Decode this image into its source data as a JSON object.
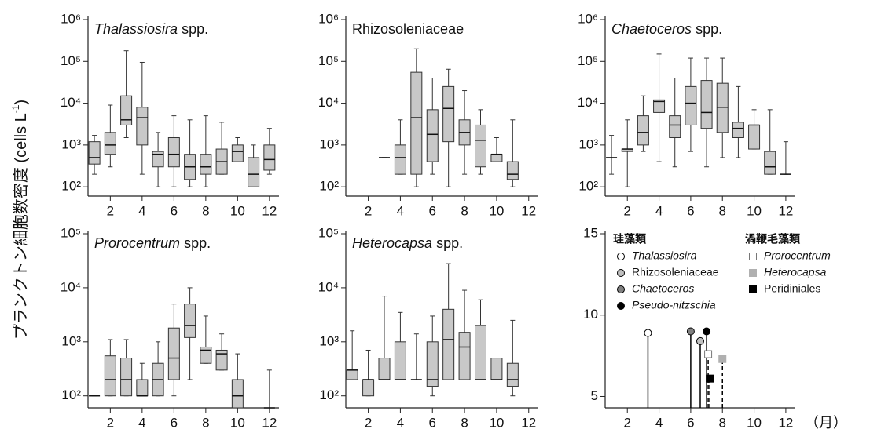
{
  "y_label": {
    "text": "プランクトン細胞数密度 (cells L",
    "superscript": "-1",
    "close": ")"
  },
  "chart_data": [
    {
      "type": "box",
      "title_italic": "Thalassiosira",
      "title_rest": "spp.",
      "log_scale": true,
      "color": "#c8c8c8",
      "xlim": [
        0.6,
        12.6
      ],
      "xticks": [
        2,
        4,
        6,
        8,
        10,
        12
      ],
      "ylim": [
        60,
        1000000
      ],
      "yticks": [
        {
          "value": 100,
          "label": "10²"
        },
        {
          "value": 1000,
          "label": "10³"
        },
        {
          "value": 10000,
          "label": "10⁴"
        },
        {
          "value": 100000,
          "label": "10⁵"
        },
        {
          "value": 1000000,
          "label": "10⁶"
        }
      ],
      "x": [
        1,
        2,
        3,
        4,
        5,
        6,
        7,
        8,
        9,
        10,
        11,
        12
      ],
      "boxes": {
        "min": [
          200,
          300,
          1500,
          200,
          100,
          100,
          100,
          100,
          200,
          400,
          100,
          200
        ],
        "q1": [
          350,
          600,
          3000,
          1000,
          300,
          300,
          150,
          200,
          200,
          400,
          100,
          250
        ],
        "median": [
          500,
          1000,
          4000,
          4500,
          600,
          600,
          300,
          300,
          400,
          700,
          200,
          450
        ],
        "q3": [
          1200,
          2000,
          15000,
          8000,
          700,
          1500,
          600,
          600,
          800,
          1000,
          500,
          1000
        ],
        "max": [
          1700,
          9000,
          180000,
          95000,
          2000,
          5000,
          4000,
          5000,
          3500,
          1500,
          1000,
          2500
        ]
      }
    },
    {
      "type": "box",
      "title_italic": "",
      "title_rest": "Rhizosoleniaceae",
      "log_scale": true,
      "color": "#c8c8c8",
      "xlim": [
        0.6,
        12.6
      ],
      "xticks": [
        2,
        4,
        6,
        8,
        10,
        12
      ],
      "ylim": [
        60,
        1000000
      ],
      "yticks": [
        {
          "value": 100,
          "label": "10²"
        },
        {
          "value": 1000,
          "label": "10³"
        },
        {
          "value": 10000,
          "label": "10⁴"
        },
        {
          "value": 100000,
          "label": "10⁵"
        },
        {
          "value": 1000000,
          "label": "10⁶"
        }
      ],
      "x": [
        1,
        2,
        3,
        4,
        5,
        6,
        7,
        8,
        9,
        10,
        11,
        12
      ],
      "boxes": {
        "min": [
          null,
          null,
          500,
          200,
          100,
          200,
          100,
          200,
          200,
          400,
          100,
          null
        ],
        "q1": [
          null,
          null,
          500,
          200,
          200,
          400,
          1200,
          1000,
          300,
          400,
          150,
          null
        ],
        "median": [
          null,
          null,
          500,
          500,
          4500,
          1800,
          7500,
          2000,
          1300,
          600,
          200,
          null
        ],
        "q3": [
          null,
          null,
          500,
          1000,
          55000,
          7000,
          25000,
          4000,
          3000,
          600,
          400,
          null
        ],
        "max": [
          null,
          null,
          500,
          4000,
          200000,
          40000,
          65000,
          20000,
          7000,
          1500,
          4000,
          null
        ]
      }
    },
    {
      "type": "box",
      "title_italic": "Chaetoceros",
      "title_rest": "spp.",
      "log_scale": true,
      "color": "#c8c8c8",
      "xlim": [
        0.6,
        12.6
      ],
      "xticks": [
        2,
        4,
        6,
        8,
        10,
        12
      ],
      "ylim": [
        60,
        1000000
      ],
      "yticks": [
        {
          "value": 100,
          "label": "10²"
        },
        {
          "value": 1000,
          "label": "10³"
        },
        {
          "value": 10000,
          "label": "10⁴"
        },
        {
          "value": 100000,
          "label": "10⁵"
        },
        {
          "value": 1000000,
          "label": "10⁶"
        }
      ],
      "x": [
        1,
        2,
        3,
        4,
        5,
        6,
        7,
        8,
        9,
        10,
        11,
        12
      ],
      "boxes": {
        "min": [
          200,
          100,
          700,
          400,
          300,
          700,
          300,
          500,
          500,
          800,
          200,
          200
        ],
        "q1": [
          500,
          700,
          1000,
          6000,
          1500,
          3000,
          2500,
          2000,
          1500,
          800,
          200,
          200
        ],
        "median": [
          500,
          800,
          2000,
          11000,
          3000,
          10000,
          6000,
          8000,
          2500,
          3000,
          300,
          200
        ],
        "q3": [
          500,
          800,
          5000,
          12000,
          5000,
          25000,
          35000,
          30000,
          3500,
          3000,
          700,
          200
        ],
        "max": [
          1700,
          4000,
          15000,
          150000,
          40000,
          120000,
          120000,
          120000,
          25000,
          7000,
          7000,
          1200
        ]
      }
    },
    {
      "type": "box",
      "title_italic": "Prorocentrum",
      "title_rest": "spp.",
      "log_scale": true,
      "color": "#c8c8c8",
      "xlim": [
        0.6,
        12.6
      ],
      "xticks": [
        2,
        4,
        6,
        8,
        10,
        12
      ],
      "ylim": [
        60,
        100000
      ],
      "yticks": [
        {
          "value": 100,
          "label": "10²"
        },
        {
          "value": 1000,
          "label": "10³"
        },
        {
          "value": 10000,
          "label": "10⁴"
        },
        {
          "value": 100000,
          "label": "10⁵"
        }
      ],
      "x": [
        1,
        2,
        3,
        4,
        5,
        6,
        7,
        8,
        9,
        10,
        11,
        12
      ],
      "boxes": {
        "min": [
          100,
          100,
          100,
          100,
          100,
          100,
          200,
          400,
          300,
          60,
          null,
          60
        ],
        "q1": [
          100,
          100,
          100,
          100,
          100,
          200,
          1200,
          400,
          300,
          60,
          null,
          60
        ],
        "median": [
          100,
          200,
          200,
          100,
          200,
          500,
          2000,
          700,
          600,
          100,
          null,
          60
        ],
        "q3": [
          100,
          550,
          500,
          200,
          400,
          1800,
          5000,
          800,
          700,
          200,
          null,
          60
        ],
        "max": [
          100,
          1100,
          1100,
          400,
          1000,
          5000,
          10000,
          3000,
          1400,
          600,
          null,
          300
        ]
      }
    },
    {
      "type": "box",
      "title_italic": "Heterocapsa",
      "title_rest": "spp.",
      "log_scale": true,
      "color": "#c8c8c8",
      "xlim": [
        0.6,
        12.6
      ],
      "xticks": [
        2,
        4,
        6,
        8,
        10,
        12
      ],
      "ylim": [
        60,
        100000
      ],
      "yticks": [
        {
          "value": 100,
          "label": "10²"
        },
        {
          "value": 1000,
          "label": "10³"
        },
        {
          "value": 10000,
          "label": "10⁴"
        },
        {
          "value": 100000,
          "label": "10⁵"
        }
      ],
      "x": [
        1,
        2,
        3,
        4,
        5,
        6,
        7,
        8,
        9,
        10,
        11,
        12
      ],
      "boxes": {
        "min": [
          200,
          100,
          200,
          200,
          200,
          100,
          200,
          200,
          200,
          200,
          100,
          null
        ],
        "q1": [
          200,
          100,
          200,
          200,
          200,
          150,
          200,
          200,
          200,
          200,
          150,
          null
        ],
        "median": [
          300,
          200,
          200,
          200,
          200,
          200,
          1100,
          800,
          200,
          200,
          200,
          null
        ],
        "q3": [
          300,
          200,
          500,
          1000,
          200,
          1000,
          4000,
          1500,
          2000,
          500,
          400,
          null
        ],
        "max": [
          1600,
          700,
          7000,
          3500,
          1400,
          3000,
          28000,
          9000,
          6000,
          500,
          2500,
          null
        ]
      }
    },
    {
      "type": "lollipop",
      "x_label": "（月）",
      "xlim": [
        0.6,
        12.6
      ],
      "xticks": [
        2,
        4,
        6,
        8,
        10,
        12
      ],
      "ylim": [
        4.3,
        15
      ],
      "yticks": [
        5,
        10,
        15
      ],
      "groups": [
        {
          "name": "珪藻類",
          "series": [
            {
              "name": "Thalassiosira",
              "italic": true,
              "marker": "circle",
              "color": "#ffffff",
              "dashed": false,
              "x": 3.3,
              "y": 8.9
            },
            {
              "name": "Rhizosoleniaceae",
              "italic": false,
              "marker": "circle",
              "color": "#c0c0c0",
              "dashed": false,
              "x": 6.6,
              "y": 8.4
            },
            {
              "name": "Chaetoceros",
              "italic": true,
              "marker": "circle",
              "color": "#808080",
              "dashed": false,
              "x": 6.0,
              "y": 9.0
            },
            {
              "name": "Pseudo-nitzschia",
              "italic": true,
              "marker": "circle",
              "color": "#000000",
              "dashed": false,
              "x": 7.0,
              "y": 9.0
            }
          ]
        },
        {
          "name": "渦鞭毛藻類",
          "series": [
            {
              "name": "Prorocentrum",
              "italic": true,
              "marker": "square",
              "color": "#ffffff",
              "dashed": true,
              "x": 7.1,
              "y": 7.6
            },
            {
              "name": "Heterocapsa",
              "italic": true,
              "marker": "square",
              "color": "#b0b0b0",
              "dashed": true,
              "x": 8.0,
              "y": 7.3
            },
            {
              "name": "Peridiniales",
              "italic": false,
              "marker": "square",
              "color": "#000000",
              "dashed": true,
              "x": 7.2,
              "y": 6.1
            }
          ]
        }
      ]
    }
  ]
}
